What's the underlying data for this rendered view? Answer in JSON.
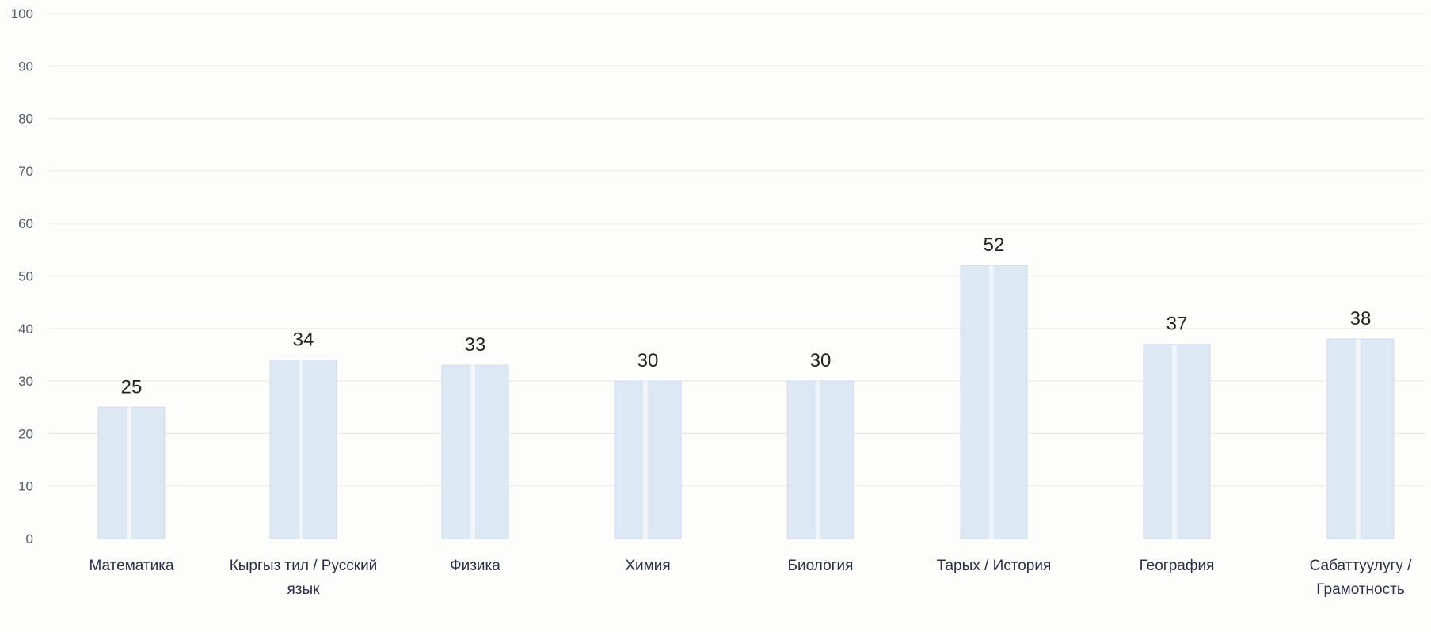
{
  "chart_data": {
    "type": "bar",
    "categories": [
      "Математика",
      "Кыргыз тил / Русский язык",
      "Физика",
      "Химия",
      "Биология",
      "Тарых / История",
      "География",
      "Сабаттуулугу / Грамотность"
    ],
    "series": [
      {
        "values": [
          25,
          34,
          33,
          30,
          30,
          52,
          37,
          38
        ]
      }
    ],
    "category_lines": [
      [
        "Математика"
      ],
      [
        "Кыргыз тил / Русский",
        "язык"
      ],
      [
        "Физика"
      ],
      [
        "Химия"
      ],
      [
        "Биология"
      ],
      [
        "Тарых / История"
      ],
      [
        "География"
      ],
      [
        "Сабаттуулугу /",
        "Грамотность"
      ]
    ],
    "ylim": [
      0,
      100
    ],
    "yticks": [
      0,
      10,
      20,
      30,
      40,
      50,
      60,
      70,
      80,
      90,
      100
    ],
    "grid": true,
    "legend": "none",
    "colors": {
      "bar": "#dce8f4",
      "bar_edge": "#cfdcec",
      "bar_stripe": "#eef4fa",
      "grid": "#ecece6"
    }
  }
}
